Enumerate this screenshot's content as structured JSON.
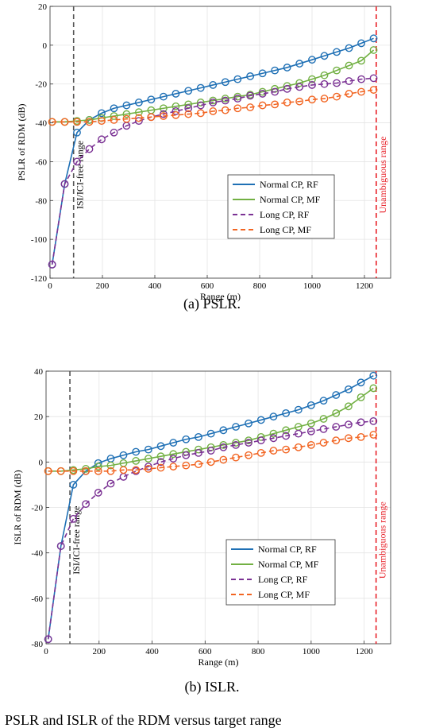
{
  "chart_data": [
    {
      "type": "line",
      "caption": "(a)  PSLR.",
      "xlabel": "Range (m)",
      "ylabel": "PSLR of RDM (dB)",
      "xlim": [
        0,
        1300
      ],
      "ylim": [
        -120,
        20
      ],
      "xticks": [
        0,
        200,
        400,
        600,
        800,
        1000,
        1200
      ],
      "yticks": [
        -120,
        -100,
        -80,
        -60,
        -40,
        -20,
        0,
        20
      ],
      "grid": true,
      "legend_position": "lower-right",
      "annotations": [
        {
          "text": "ISI/ICI-free range",
          "x": 90,
          "color": "#555555"
        },
        {
          "text": "Unambiguous range",
          "x": 1245,
          "color": "#e8222a"
        }
      ],
      "series": [
        {
          "name": "Normal CP, RF",
          "color": "#1f70b5",
          "dash": "solid",
          "x": [
            8,
            56,
            103,
            150,
            197,
            244,
            292,
            339,
            386,
            433,
            480,
            528,
            575,
            622,
            669,
            716,
            764,
            811,
            858,
            905,
            952,
            1000,
            1047,
            1094,
            1141,
            1188,
            1235
          ],
          "y": [
            -113,
            -71.5,
            -45,
            -38.5,
            -35,
            -32.5,
            -31,
            -29.5,
            -28,
            -26.5,
            -25,
            -23.5,
            -22,
            -20.5,
            -19,
            -17.5,
            -16,
            -14.5,
            -13,
            -11.5,
            -9.5,
            -7.5,
            -5.5,
            -3.5,
            -1.5,
            1,
            3.5
          ]
        },
        {
          "name": "Normal CP, MF",
          "color": "#72b043",
          "dash": "solid",
          "x": [
            8,
            56,
            103,
            150,
            197,
            244,
            292,
            339,
            386,
            433,
            480,
            528,
            575,
            622,
            669,
            716,
            764,
            811,
            858,
            905,
            952,
            1000,
            1047,
            1094,
            1141,
            1188,
            1235
          ],
          "y": [
            -39.5,
            -39.5,
            -39,
            -38.5,
            -37.5,
            -36.5,
            -35.5,
            -34.5,
            -33.5,
            -32.5,
            -31.5,
            -30.5,
            -29.5,
            -28.5,
            -27.5,
            -26.5,
            -25.5,
            -24,
            -22.5,
            -21,
            -19.5,
            -17.5,
            -15.5,
            -13,
            -10.5,
            -8,
            -2.5
          ]
        },
        {
          "name": "Long CP, RF",
          "color": "#7b3294",
          "dash": "dashed",
          "x": [
            8,
            56,
            103,
            150,
            197,
            244,
            292,
            339,
            386,
            433,
            480,
            528,
            575,
            622,
            669,
            716,
            764,
            811,
            858,
            905,
            952,
            1000,
            1047,
            1094,
            1141,
            1188,
            1235
          ],
          "y": [
            -113,
            -71.5,
            -60,
            -53.5,
            -48.5,
            -45,
            -41.5,
            -39,
            -37,
            -35.5,
            -34,
            -32.5,
            -31,
            -29.5,
            -28.5,
            -27.5,
            -26,
            -25,
            -24,
            -22.5,
            -21.5,
            -20.5,
            -20,
            -19.5,
            -18.5,
            -17.5,
            -17
          ]
        },
        {
          "name": "Long CP, MF",
          "color": "#f26522",
          "dash": "dashed",
          "x": [
            8,
            56,
            103,
            150,
            197,
            244,
            292,
            339,
            386,
            433,
            480,
            528,
            575,
            622,
            669,
            716,
            764,
            811,
            858,
            905,
            952,
            1000,
            1047,
            1094,
            1141,
            1188,
            1235
          ],
          "y": [
            -39.5,
            -39.5,
            -39.5,
            -39.5,
            -39,
            -38.5,
            -38,
            -37.5,
            -37,
            -36.5,
            -36,
            -35.5,
            -35,
            -34,
            -33.5,
            -32.5,
            -32,
            -31,
            -30.5,
            -29.5,
            -29,
            -28,
            -27.5,
            -26.5,
            -25,
            -24,
            -23
          ]
        }
      ]
    },
    {
      "type": "line",
      "caption": "(b)  ISLR.",
      "xlabel": "Range (m)",
      "ylabel": "ISLR of RDM (dB)",
      "xlim": [
        0,
        1300
      ],
      "ylim": [
        -80,
        40
      ],
      "xticks": [
        0,
        200,
        400,
        600,
        800,
        1000,
        1200
      ],
      "yticks": [
        -80,
        -60,
        -40,
        -20,
        0,
        20,
        40
      ],
      "grid": true,
      "legend_position": "lower-right",
      "annotations": [
        {
          "text": "ISI/ICI-free range",
          "x": 90,
          "color": "#555555"
        },
        {
          "text": "Unambiguous range",
          "x": 1245,
          "color": "#e8222a"
        }
      ],
      "series": [
        {
          "name": "Normal CP, RF",
          "color": "#1f70b5",
          "dash": "solid",
          "x": [
            8,
            56,
            103,
            150,
            197,
            244,
            292,
            339,
            386,
            433,
            480,
            528,
            575,
            622,
            669,
            716,
            764,
            811,
            858,
            905,
            952,
            1000,
            1047,
            1094,
            1141,
            1188,
            1235
          ],
          "y": [
            -78,
            -37,
            -10,
            -4,
            -0.5,
            1.5,
            3,
            4.5,
            5.5,
            7,
            8.5,
            10,
            11,
            12.5,
            14,
            15.5,
            17,
            18.5,
            20,
            21.5,
            23,
            25,
            27,
            29.5,
            32,
            35,
            38
          ]
        },
        {
          "name": "Normal CP, MF",
          "color": "#72b043",
          "dash": "solid",
          "x": [
            8,
            56,
            103,
            150,
            197,
            244,
            292,
            339,
            386,
            433,
            480,
            528,
            575,
            622,
            669,
            716,
            764,
            811,
            858,
            905,
            952,
            1000,
            1047,
            1094,
            1141,
            1188,
            1235
          ],
          "y": [
            -4,
            -4,
            -3.5,
            -3,
            -2,
            -1.5,
            -0.5,
            0.5,
            1.5,
            2.5,
            3.5,
            4.5,
            5.5,
            6.5,
            7.5,
            8.5,
            9.5,
            11,
            12.5,
            14,
            15.5,
            17,
            19,
            21.5,
            24.5,
            28.5,
            32.5
          ]
        },
        {
          "name": "Long CP, RF",
          "color": "#7b3294",
          "dash": "dashed",
          "x": [
            8,
            56,
            103,
            150,
            197,
            244,
            292,
            339,
            386,
            433,
            480,
            528,
            575,
            622,
            669,
            716,
            764,
            811,
            858,
            905,
            952,
            1000,
            1047,
            1094,
            1141,
            1188,
            1235
          ],
          "y": [
            -78,
            -37,
            -25,
            -18.5,
            -13.5,
            -9.5,
            -6.5,
            -4,
            -2,
            0,
            1.5,
            3,
            4,
            5,
            6.5,
            7.5,
            8.5,
            9.5,
            10.5,
            11.5,
            12.5,
            13.5,
            14.5,
            15.5,
            16.5,
            17.5,
            18
          ]
        },
        {
          "name": "Long CP, MF",
          "color": "#f26522",
          "dash": "dashed",
          "x": [
            8,
            56,
            103,
            150,
            197,
            244,
            292,
            339,
            386,
            433,
            480,
            528,
            575,
            622,
            669,
            716,
            764,
            811,
            858,
            905,
            952,
            1000,
            1047,
            1094,
            1141,
            1188,
            1235
          ],
          "y": [
            -4,
            -4,
            -4,
            -4,
            -4,
            -4,
            -3.5,
            -3.5,
            -3,
            -2.5,
            -2,
            -1.5,
            -1,
            0,
            1,
            2,
            3,
            4,
            5,
            5.5,
            6.5,
            7.5,
            8.5,
            9.5,
            10.5,
            11,
            12
          ]
        }
      ]
    }
  ],
  "bottom_text": "PSLR and ISLR of the RDM versus target range"
}
